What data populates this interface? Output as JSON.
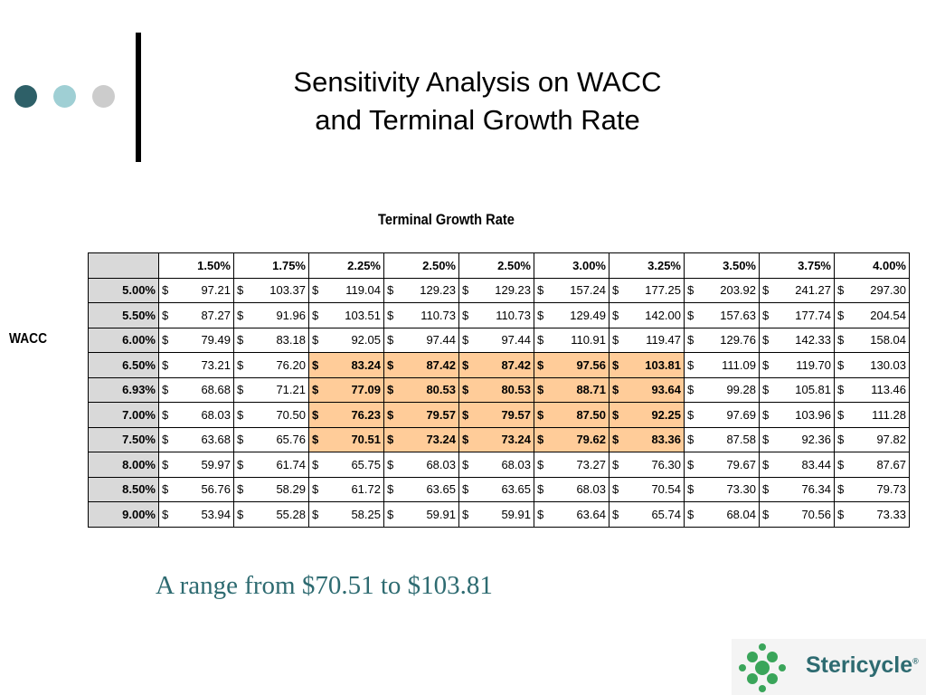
{
  "slide": {
    "title_line1": "Sensitivity Analysis on WACC",
    "title_line2": "and Terminal Growth Rate",
    "caption": "A range from $70.51 to $103.81"
  },
  "decor": {
    "dot_colors": [
      "#2e6068",
      "#9fcfd4",
      "#cccccc"
    ]
  },
  "table": {
    "col_axis_label": "Terminal Growth Rate",
    "row_axis_label": "WACC",
    "currency_symbol": "$",
    "columns": [
      "1.50%",
      "1.75%",
      "2.25%",
      "2.50%",
      "2.50%",
      "3.00%",
      "3.25%",
      "3.50%",
      "3.75%",
      "4.00%"
    ],
    "rows": [
      {
        "wacc": "5.00%",
        "values": [
          "97.21",
          "103.37",
          "119.04",
          "129.23",
          "129.23",
          "157.24",
          "177.25",
          "203.92",
          "241.27",
          "297.30"
        ],
        "highlight": []
      },
      {
        "wacc": "5.50%",
        "values": [
          "87.27",
          "91.96",
          "103.51",
          "110.73",
          "110.73",
          "129.49",
          "142.00",
          "157.63",
          "177.74",
          "204.54"
        ],
        "highlight": []
      },
      {
        "wacc": "6.00%",
        "values": [
          "79.49",
          "83.18",
          "92.05",
          "97.44",
          "97.44",
          "110.91",
          "119.47",
          "129.76",
          "142.33",
          "158.04"
        ],
        "highlight": []
      },
      {
        "wacc": "6.50%",
        "values": [
          "73.21",
          "76.20",
          "83.24",
          "87.42",
          "87.42",
          "97.56",
          "103.81",
          "111.09",
          "119.70",
          "130.03"
        ],
        "highlight": [
          2,
          3,
          4,
          5,
          6
        ]
      },
      {
        "wacc": "6.93%",
        "values": [
          "68.68",
          "71.21",
          "77.09",
          "80.53",
          "80.53",
          "88.71",
          "93.64",
          "99.28",
          "105.81",
          "113.46"
        ],
        "highlight": [
          2,
          3,
          4,
          5,
          6
        ]
      },
      {
        "wacc": "7.00%",
        "values": [
          "68.03",
          "70.50",
          "76.23",
          "79.57",
          "79.57",
          "87.50",
          "92.25",
          "97.69",
          "103.96",
          "111.28"
        ],
        "highlight": [
          2,
          3,
          4,
          5,
          6
        ]
      },
      {
        "wacc": "7.50%",
        "values": [
          "63.68",
          "65.76",
          "70.51",
          "73.24",
          "73.24",
          "79.62",
          "83.36",
          "87.58",
          "92.36",
          "97.82"
        ],
        "highlight": [
          2,
          3,
          4,
          5,
          6
        ]
      },
      {
        "wacc": "8.00%",
        "values": [
          "59.97",
          "61.74",
          "65.75",
          "68.03",
          "68.03",
          "73.27",
          "76.30",
          "79.67",
          "83.44",
          "87.67"
        ],
        "highlight": []
      },
      {
        "wacc": "8.50%",
        "values": [
          "56.76",
          "58.29",
          "61.72",
          "63.65",
          "63.65",
          "68.03",
          "70.54",
          "73.30",
          "76.34",
          "79.73"
        ],
        "highlight": []
      },
      {
        "wacc": "9.00%",
        "values": [
          "53.94",
          "55.28",
          "58.25",
          "59.91",
          "59.91",
          "63.64",
          "65.74",
          "68.04",
          "70.56",
          "73.33"
        ],
        "highlight": []
      }
    ],
    "highlight_color": "#ffcc99",
    "header_fill": "#d9d9d9"
  },
  "logo": {
    "icon": "stericycle-dots-logo",
    "name": "Stericycle",
    "reg_mark": "®",
    "color": "#2e6b71",
    "dot_color": "#3aa55a"
  }
}
